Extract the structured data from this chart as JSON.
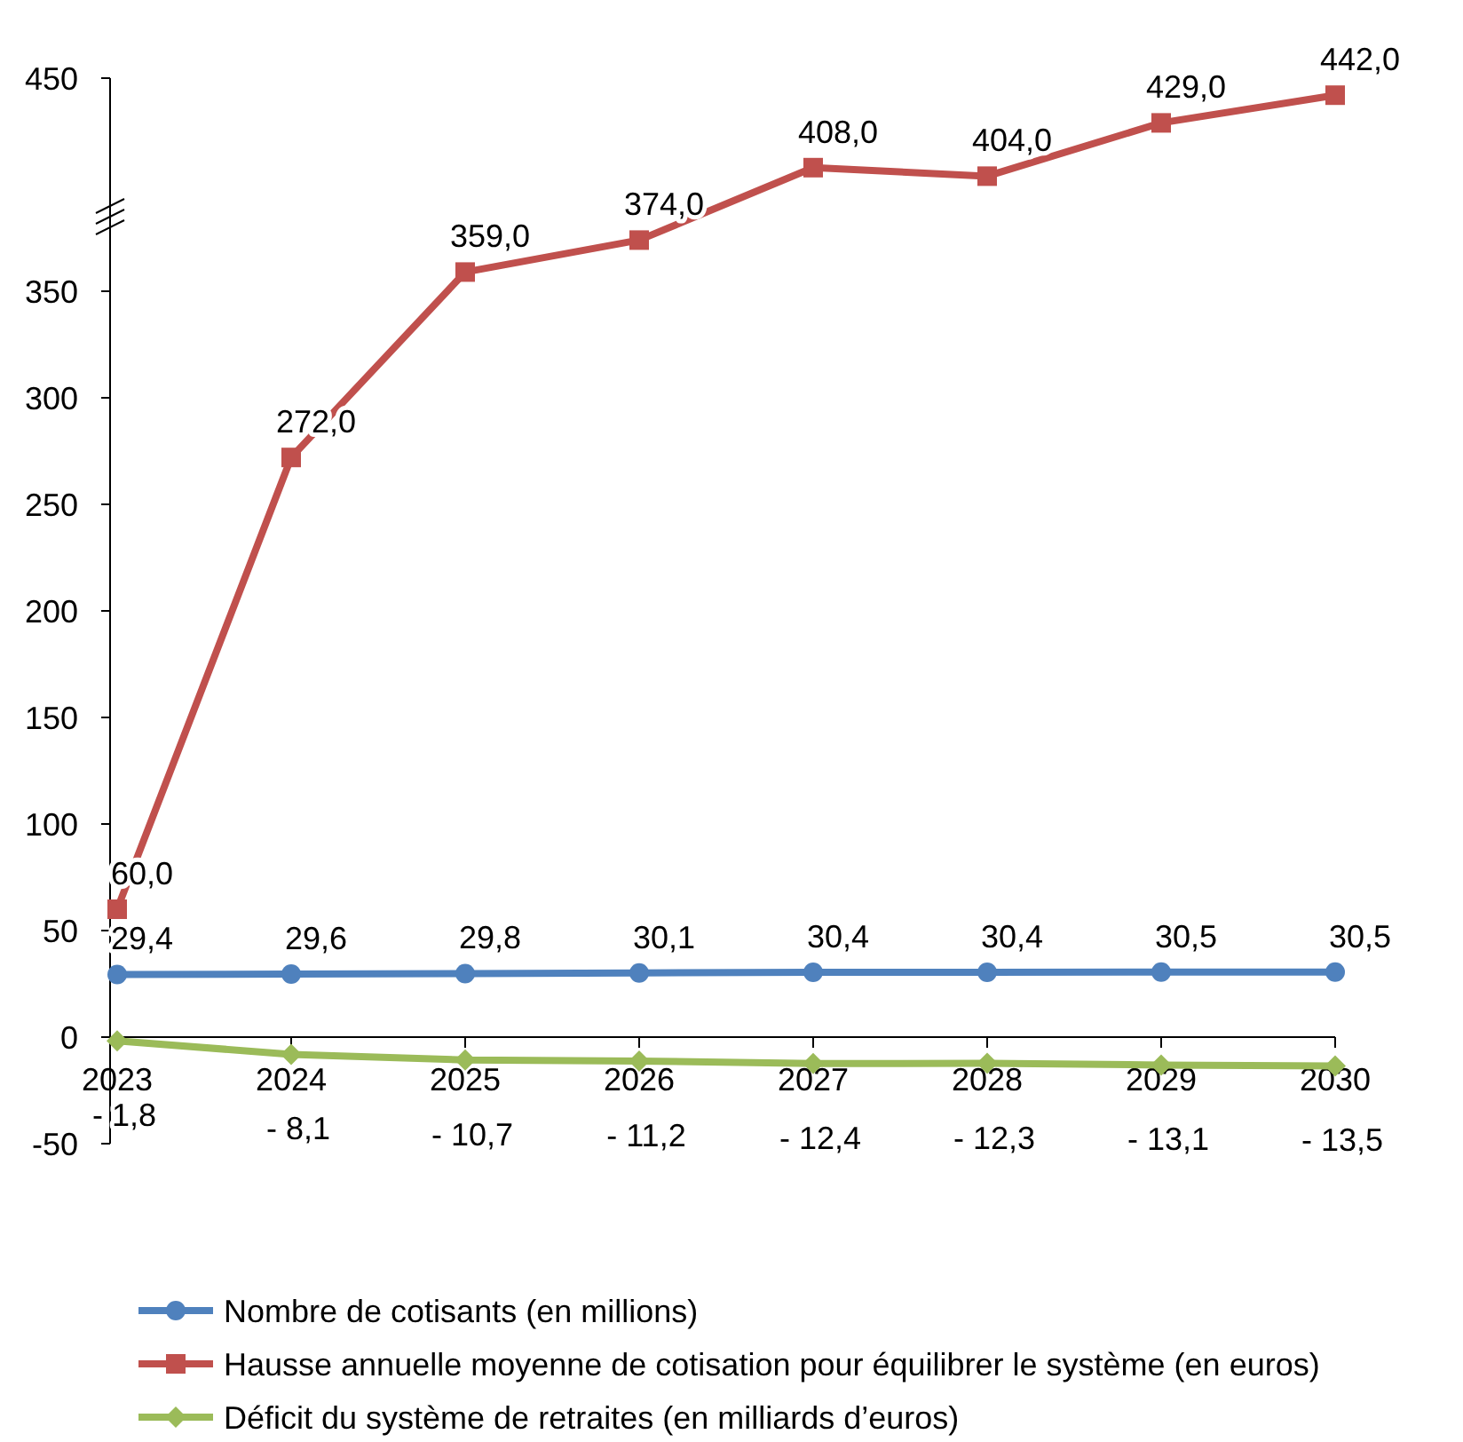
{
  "chart_data": {
    "type": "line",
    "categories": [
      "2023",
      "2024",
      "2025",
      "2026",
      "2027",
      "2028",
      "2029",
      "2030"
    ],
    "ylim": [
      -50,
      450
    ],
    "yticks": [
      -50,
      0,
      50,
      100,
      150,
      200,
      250,
      300,
      350,
      450
    ],
    "grid": false,
    "legend": "bottom",
    "data_labels": true,
    "series": [
      {
        "name": "Nombre de cotisants (en millions)",
        "color": "#4f81bd",
        "marker": "circle",
        "values": [
          29.4,
          29.6,
          29.8,
          30.1,
          30.4,
          30.4,
          30.5,
          30.5
        ],
        "value_labels": [
          "29,4",
          "29,6",
          "29,8",
          "30,1",
          "30,4",
          "30,4",
          "30,5",
          "30,5"
        ]
      },
      {
        "name": "Hausse annuelle moyenne de cotisation pour équilibrer le système (en euros)",
        "color": "#c0504d",
        "marker": "square",
        "values": [
          60,
          272,
          359,
          374,
          408,
          404,
          429,
          442
        ],
        "value_labels": [
          "60,0",
          "272,0",
          "359,0",
          "374,0",
          "408,0",
          "404,0",
          "429,0",
          "442,0"
        ]
      },
      {
        "name": "Déficit du système de retraites (en milliards d’euros)",
        "color": "#9bbb59",
        "marker": "diamond",
        "values": [
          -1.8,
          -8.1,
          -10.7,
          -11.2,
          -12.4,
          -12.3,
          -13.1,
          -13.5
        ],
        "value_labels": [
          "- 1,8",
          "- 8,1",
          "- 10,7",
          "- 11,2",
          "- 12,4",
          "- 12,3",
          "- 13,1",
          "- 13,5"
        ]
      }
    ]
  }
}
